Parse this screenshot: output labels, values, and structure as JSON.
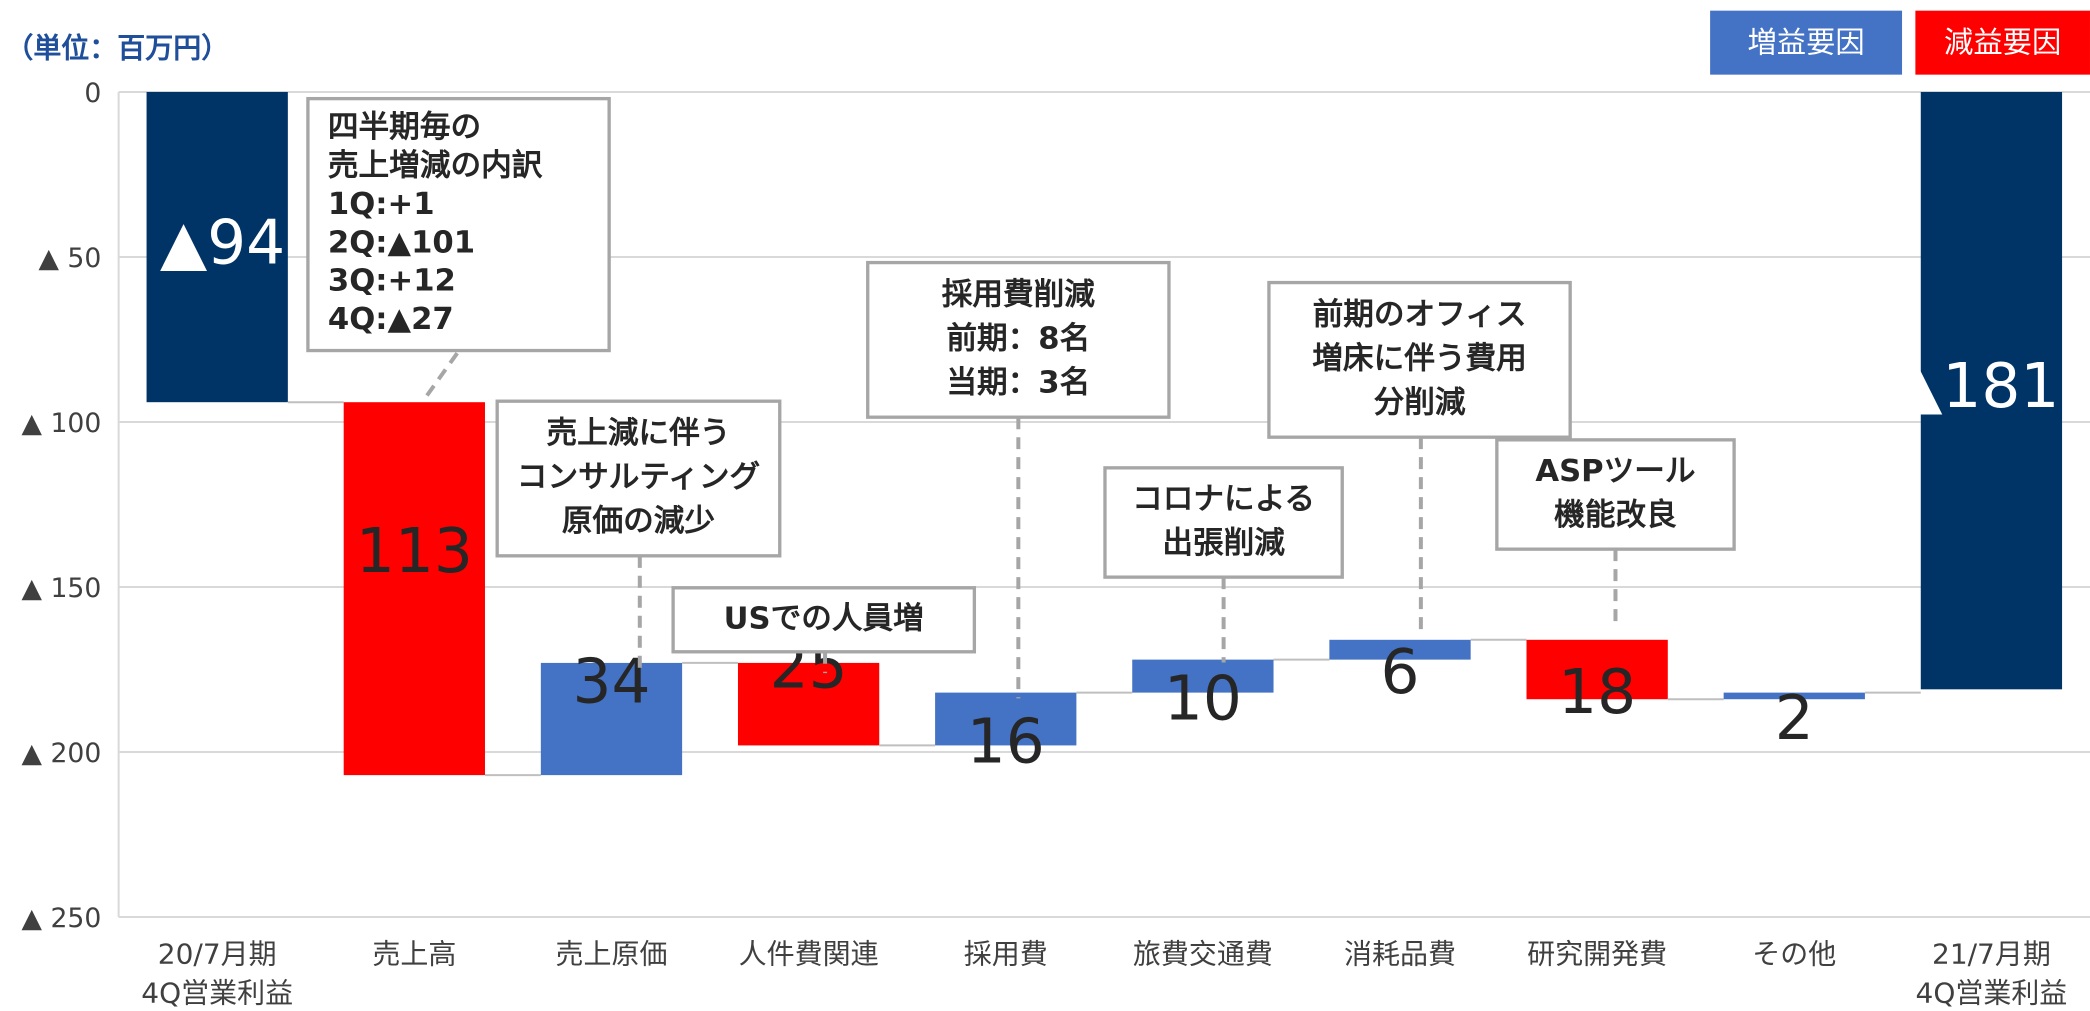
{
  "chart_data": {
    "type": "waterfall",
    "unit_label": "（単位：百万円）",
    "categories": [
      "20/7月期\n4Q営業利益",
      "売上高",
      "売上原価",
      "人件費関連",
      "採用費",
      "旅費交通費",
      "消耗品費",
      "研究開発費",
      "その他",
      "21/7月期\n4Q営業利益"
    ],
    "measure": [
      "absolute",
      "relative",
      "relative",
      "relative",
      "relative",
      "relative",
      "relative",
      "relative",
      "relative",
      "absolute"
    ],
    "values": [
      -94,
      -113,
      34,
      -25,
      16,
      10,
      6,
      -18,
      2,
      -181
    ],
    "value_labels": [
      "▲94",
      "113",
      "34",
      "25",
      "16",
      "10",
      "6",
      "18",
      "2",
      "▲181"
    ],
    "colors": [
      "#003366",
      "#ff0000",
      "#4472c4",
      "#ff0000",
      "#4472c4",
      "#4472c4",
      "#4472c4",
      "#ff0000",
      "#4472c4",
      "#003366"
    ],
    "legend": [
      {
        "name": "増益要因",
        "color": "#4472c4"
      },
      {
        "name": "減益要因",
        "color": "#ff0000"
      }
    ],
    "ylim": [
      -250,
      0
    ],
    "inverted": true,
    "yticks": [
      0,
      {
        "value": -50,
        "label": "▲ 50"
      },
      {
        "value": -100,
        "label": "▲ 100"
      },
      {
        "value": -150,
        "label": "▲ 150"
      },
      {
        "value": -200,
        "label": "▲ 200"
      },
      {
        "value": -250,
        "label": "▲ 250"
      }
    ],
    "grid": true,
    "annotations": [
      {
        "lines": [
          "四半期毎の",
          "売上増減の内訳",
          "1Q:+1",
          "2Q:▲101",
          "3Q:+12",
          "4Q:▲27"
        ]
      },
      {
        "lines": [
          "売上減に伴う",
          "コンサルティング",
          "原価の減少"
        ]
      },
      {
        "lines": [
          "USでの人員増"
        ]
      },
      {
        "lines": [
          "採用費削減",
          "前期：8名",
          "当期：3名"
        ]
      },
      {
        "lines": [
          "コロナによる",
          "出張削減"
        ]
      },
      {
        "lines": [
          "前期のオフィス",
          "増床に伴う費用",
          "分削減"
        ]
      },
      {
        "lines": [
          "ASPツール",
          "機能改良"
        ]
      }
    ]
  }
}
